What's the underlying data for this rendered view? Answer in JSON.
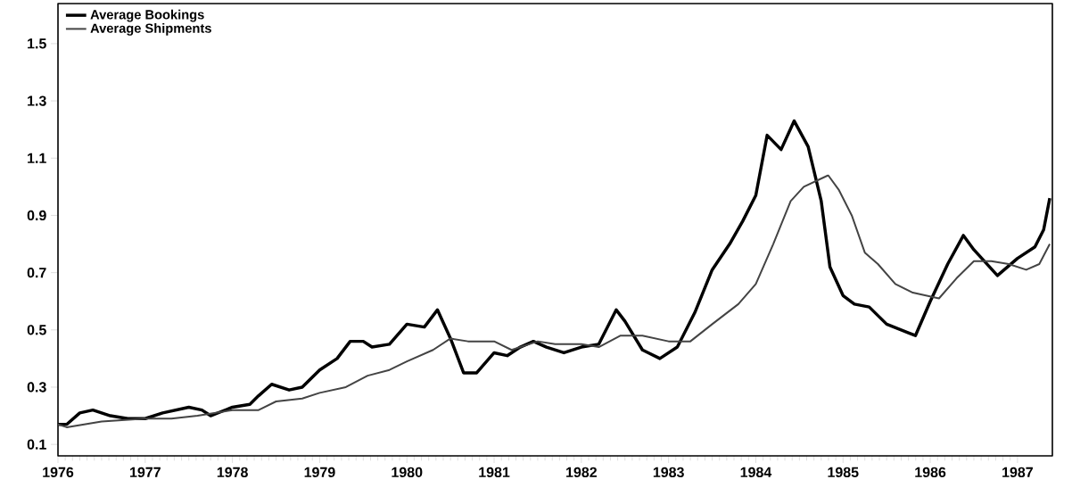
{
  "chart_data": {
    "type": "line",
    "legend": "top left",
    "grid": false,
    "marker": "none",
    "xlim": [
      1976,
      1987.4
    ],
    "ylim": [
      0.06,
      1.64
    ],
    "xticks": [
      1976,
      1977,
      1978,
      1979,
      1980,
      1981,
      1982,
      1983,
      1984,
      1985,
      1986,
      1987
    ],
    "yticks": [
      0.1,
      0.3,
      0.5,
      0.7,
      0.9,
      1.1,
      1.3,
      1.5
    ],
    "series": [
      {
        "name": "Average Bookings",
        "color": "#000000",
        "x": [
          1976.0,
          1976.1,
          1976.25,
          1976.4,
          1976.6,
          1976.8,
          1977.0,
          1977.2,
          1977.5,
          1977.65,
          1977.75,
          1978.0,
          1978.2,
          1978.3,
          1978.45,
          1978.65,
          1978.8,
          1979.0,
          1979.2,
          1979.35,
          1979.5,
          1979.6,
          1979.8,
          1980.0,
          1980.2,
          1980.35,
          1980.5,
          1980.65,
          1980.8,
          1981.0,
          1981.15,
          1981.3,
          1981.45,
          1981.6,
          1981.8,
          1982.0,
          1982.2,
          1982.4,
          1982.5,
          1982.7,
          1982.9,
          1983.1,
          1983.3,
          1983.5,
          1983.7,
          1983.85,
          1984.0,
          1984.13,
          1984.29,
          1984.44,
          1984.6,
          1984.75,
          1984.85,
          1985.0,
          1985.13,
          1985.3,
          1985.5,
          1985.83,
          1986.0,
          1986.2,
          1986.38,
          1986.5,
          1986.77,
          1987.0,
          1987.2,
          1987.3,
          1987.37
        ],
        "values": [
          0.17,
          0.17,
          0.21,
          0.22,
          0.2,
          0.19,
          0.19,
          0.21,
          0.23,
          0.22,
          0.2,
          0.23,
          0.24,
          0.27,
          0.31,
          0.29,
          0.3,
          0.36,
          0.4,
          0.46,
          0.46,
          0.44,
          0.45,
          0.52,
          0.51,
          0.57,
          0.47,
          0.35,
          0.35,
          0.42,
          0.41,
          0.44,
          0.46,
          0.44,
          0.42,
          0.44,
          0.45,
          0.57,
          0.53,
          0.43,
          0.4,
          0.44,
          0.56,
          0.71,
          0.8,
          0.88,
          0.97,
          1.18,
          1.13,
          1.23,
          1.14,
          0.95,
          0.72,
          0.62,
          0.59,
          0.58,
          0.52,
          0.48,
          0.6,
          0.73,
          0.83,
          0.78,
          0.69,
          0.75,
          0.79,
          0.85,
          0.96
        ]
      },
      {
        "name": "Average Shipments",
        "color": "#444444",
        "x": [
          1976.0,
          1976.1,
          1976.5,
          1977.0,
          1977.3,
          1977.6,
          1978.0,
          1978.3,
          1978.5,
          1978.8,
          1979.0,
          1979.3,
          1979.55,
          1979.8,
          1980.0,
          1980.3,
          1980.5,
          1980.7,
          1981.0,
          1981.2,
          1981.5,
          1981.7,
          1982.0,
          1982.2,
          1982.45,
          1982.7,
          1983.0,
          1983.25,
          1983.5,
          1983.8,
          1984.0,
          1984.2,
          1984.4,
          1984.55,
          1984.83,
          1984.95,
          1985.1,
          1985.25,
          1985.4,
          1985.6,
          1985.8,
          1986.1,
          1986.3,
          1986.5,
          1986.7,
          1986.9,
          1987.1,
          1987.25,
          1987.37
        ],
        "values": [
          0.17,
          0.16,
          0.18,
          0.19,
          0.19,
          0.2,
          0.22,
          0.22,
          0.25,
          0.26,
          0.28,
          0.3,
          0.34,
          0.36,
          0.39,
          0.43,
          0.47,
          0.46,
          0.46,
          0.43,
          0.46,
          0.45,
          0.45,
          0.44,
          0.48,
          0.48,
          0.46,
          0.46,
          0.52,
          0.59,
          0.66,
          0.8,
          0.95,
          1.0,
          1.04,
          0.99,
          0.9,
          0.77,
          0.73,
          0.66,
          0.63,
          0.61,
          0.68,
          0.74,
          0.74,
          0.73,
          0.71,
          0.73,
          0.8
        ]
      }
    ]
  }
}
